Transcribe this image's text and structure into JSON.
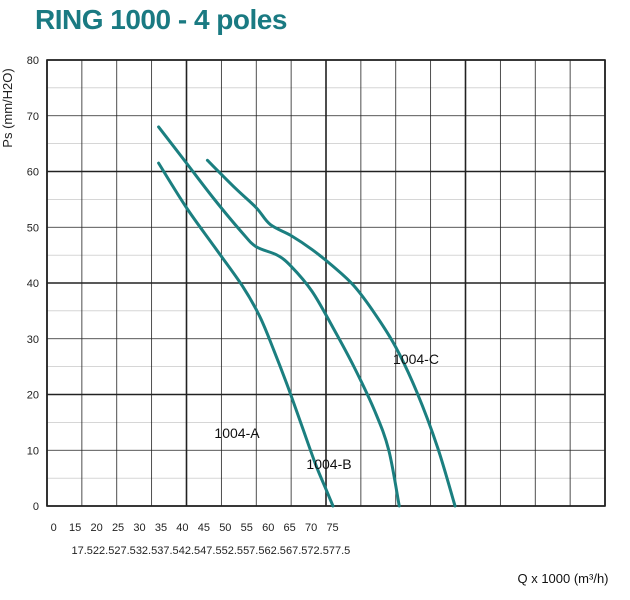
{
  "title": "RING 1000 - 4 poles",
  "chart_data": {
    "type": "line",
    "ylabel": "Ps (mm/H2O)",
    "xlabel": "Q x 1000 (m³/h)",
    "xlim": [
      0,
      80
    ],
    "ylim": [
      0,
      80
    ],
    "x_ticks_row1": [
      "0",
      "15",
      "20",
      "25",
      "30",
      "35",
      "40",
      "45",
      "50",
      "55",
      "60",
      "65",
      "70",
      "75"
    ],
    "x_ticks_row2": [
      "17.5",
      "22.5",
      "27.5",
      "32.5",
      "37.5",
      "42.5",
      "47.5",
      "52.5",
      "57.5",
      "62.5",
      "67.5",
      "72.5",
      "77.5"
    ],
    "y_ticks": [
      "0",
      "10",
      "20",
      "30",
      "40",
      "50",
      "60",
      "70",
      "80"
    ],
    "grid": true,
    "line_color": "#1b7f80",
    "series": [
      {
        "name": "1004-A",
        "x": [
          16,
          20,
          24,
          28,
          30.5,
          32.5,
          34.5,
          36.5,
          38.5,
          40,
          41
        ],
        "y": [
          61.5,
          53.5,
          46.5,
          39.5,
          34,
          28,
          21.5,
          14.5,
          7.5,
          3,
          0
        ]
      },
      {
        "name": "1004-B",
        "x": [
          16,
          20,
          24,
          28,
          30,
          33,
          35,
          38,
          41,
          44,
          47,
          49,
          50.5
        ],
        "y": [
          68,
          61.5,
          55,
          49,
          46.5,
          45,
          43,
          38.5,
          32,
          25,
          17,
          10,
          0
        ]
      },
      {
        "name": "1004-C",
        "x": [
          23,
          27,
          30,
          32,
          35,
          38,
          41,
          44,
          47,
          50,
          53,
          56,
          58.5
        ],
        "y": [
          62,
          57,
          53.5,
          50.5,
          48.5,
          46,
          43,
          39.5,
          34.5,
          28.5,
          20.5,
          10.5,
          0
        ]
      }
    ]
  }
}
